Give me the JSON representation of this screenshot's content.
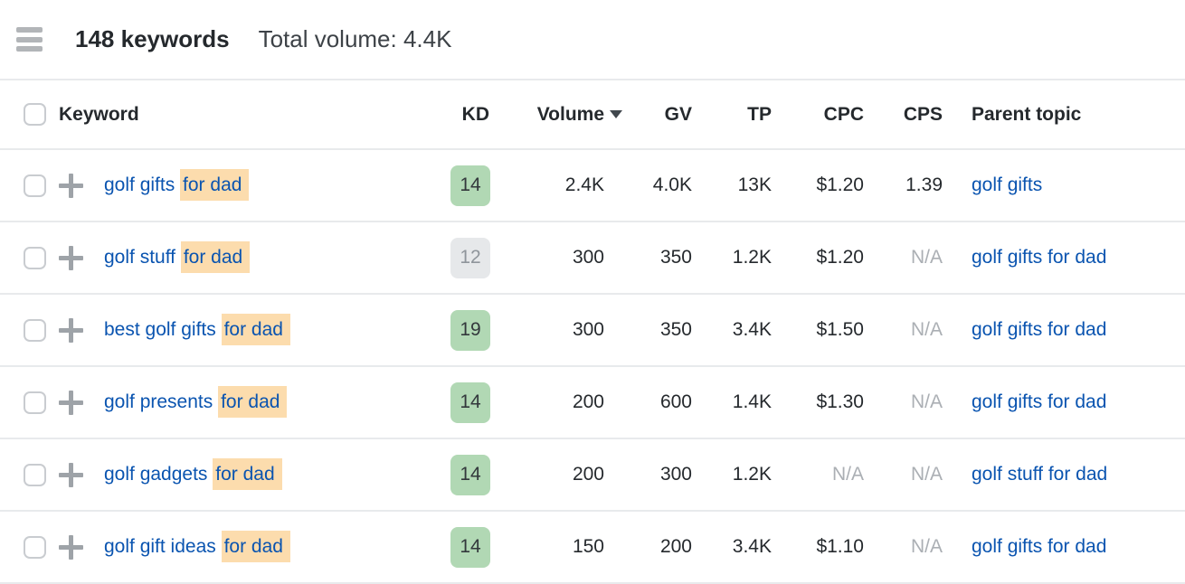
{
  "colors": {
    "link_blue": "#0a54b0",
    "highlight_bg": "#fcdcad",
    "kd_green_bg": "#b1d8b4",
    "kd_green_text": "#33383c",
    "kd_gray_bg": "#e6e8ea",
    "kd_gray_text": "#8f959b",
    "na_text": "#abafb4",
    "text_dark": "#25292d",
    "text_secondary": "#3d4247",
    "separator": "#e8eaec",
    "icon_gray": "#9ea3a8",
    "hamburger_gray": "#b2b5b8",
    "checkbox_border": "#c9ccd0"
  },
  "toolbar": {
    "keywords_count": "148 keywords",
    "total_volume": "Total volume: 4.4K"
  },
  "table": {
    "headers": {
      "keyword": "Keyword",
      "kd": "KD",
      "volume": "Volume",
      "gv": "GV",
      "tp": "TP",
      "cpc": "CPC",
      "cps": "CPS",
      "parent": "Parent topic"
    },
    "volume_sort": "descending",
    "rows": [
      {
        "keyword_plain": "golf gifts ",
        "keyword_highlight": "for dad",
        "kd": "14",
        "kd_variant": "green",
        "volume": "2.4K",
        "gv": "4.0K",
        "tp": "13K",
        "cpc": "$1.20",
        "cpc_variant": "normal",
        "cps": "1.39",
        "cps_variant": "normal",
        "parent": "golf gifts"
      },
      {
        "keyword_plain": "golf stuff ",
        "keyword_highlight": "for dad",
        "kd": "12",
        "kd_variant": "gray",
        "volume": "300",
        "gv": "350",
        "tp": "1.2K",
        "cpc": "$1.20",
        "cpc_variant": "normal",
        "cps": "N/A",
        "cps_variant": "na",
        "parent": "golf gifts for dad"
      },
      {
        "keyword_plain": "best golf gifts ",
        "keyword_highlight": "for dad",
        "kd": "19",
        "kd_variant": "green",
        "volume": "300",
        "gv": "350",
        "tp": "3.4K",
        "cpc": "$1.50",
        "cpc_variant": "normal",
        "cps": "N/A",
        "cps_variant": "na",
        "parent": "golf gifts for dad"
      },
      {
        "keyword_plain": "golf presents ",
        "keyword_highlight": "for dad",
        "kd": "14",
        "kd_variant": "green",
        "volume": "200",
        "gv": "600",
        "tp": "1.4K",
        "cpc": "$1.30",
        "cpc_variant": "normal",
        "cps": "N/A",
        "cps_variant": "na",
        "parent": "golf gifts for dad"
      },
      {
        "keyword_plain": "golf gadgets ",
        "keyword_highlight": "for dad",
        "kd": "14",
        "kd_variant": "green",
        "volume": "200",
        "gv": "300",
        "tp": "1.2K",
        "cpc": "N/A",
        "cpc_variant": "na",
        "cps": "N/A",
        "cps_variant": "na",
        "parent": "golf stuff for dad"
      },
      {
        "keyword_plain": "golf gift ideas ",
        "keyword_highlight": "for dad",
        "kd": "14",
        "kd_variant": "green",
        "volume": "150",
        "gv": "200",
        "tp": "3.4K",
        "cpc": "$1.10",
        "cpc_variant": "normal",
        "cps": "N/A",
        "cps_variant": "na",
        "parent": "golf gifts for dad"
      }
    ]
  }
}
